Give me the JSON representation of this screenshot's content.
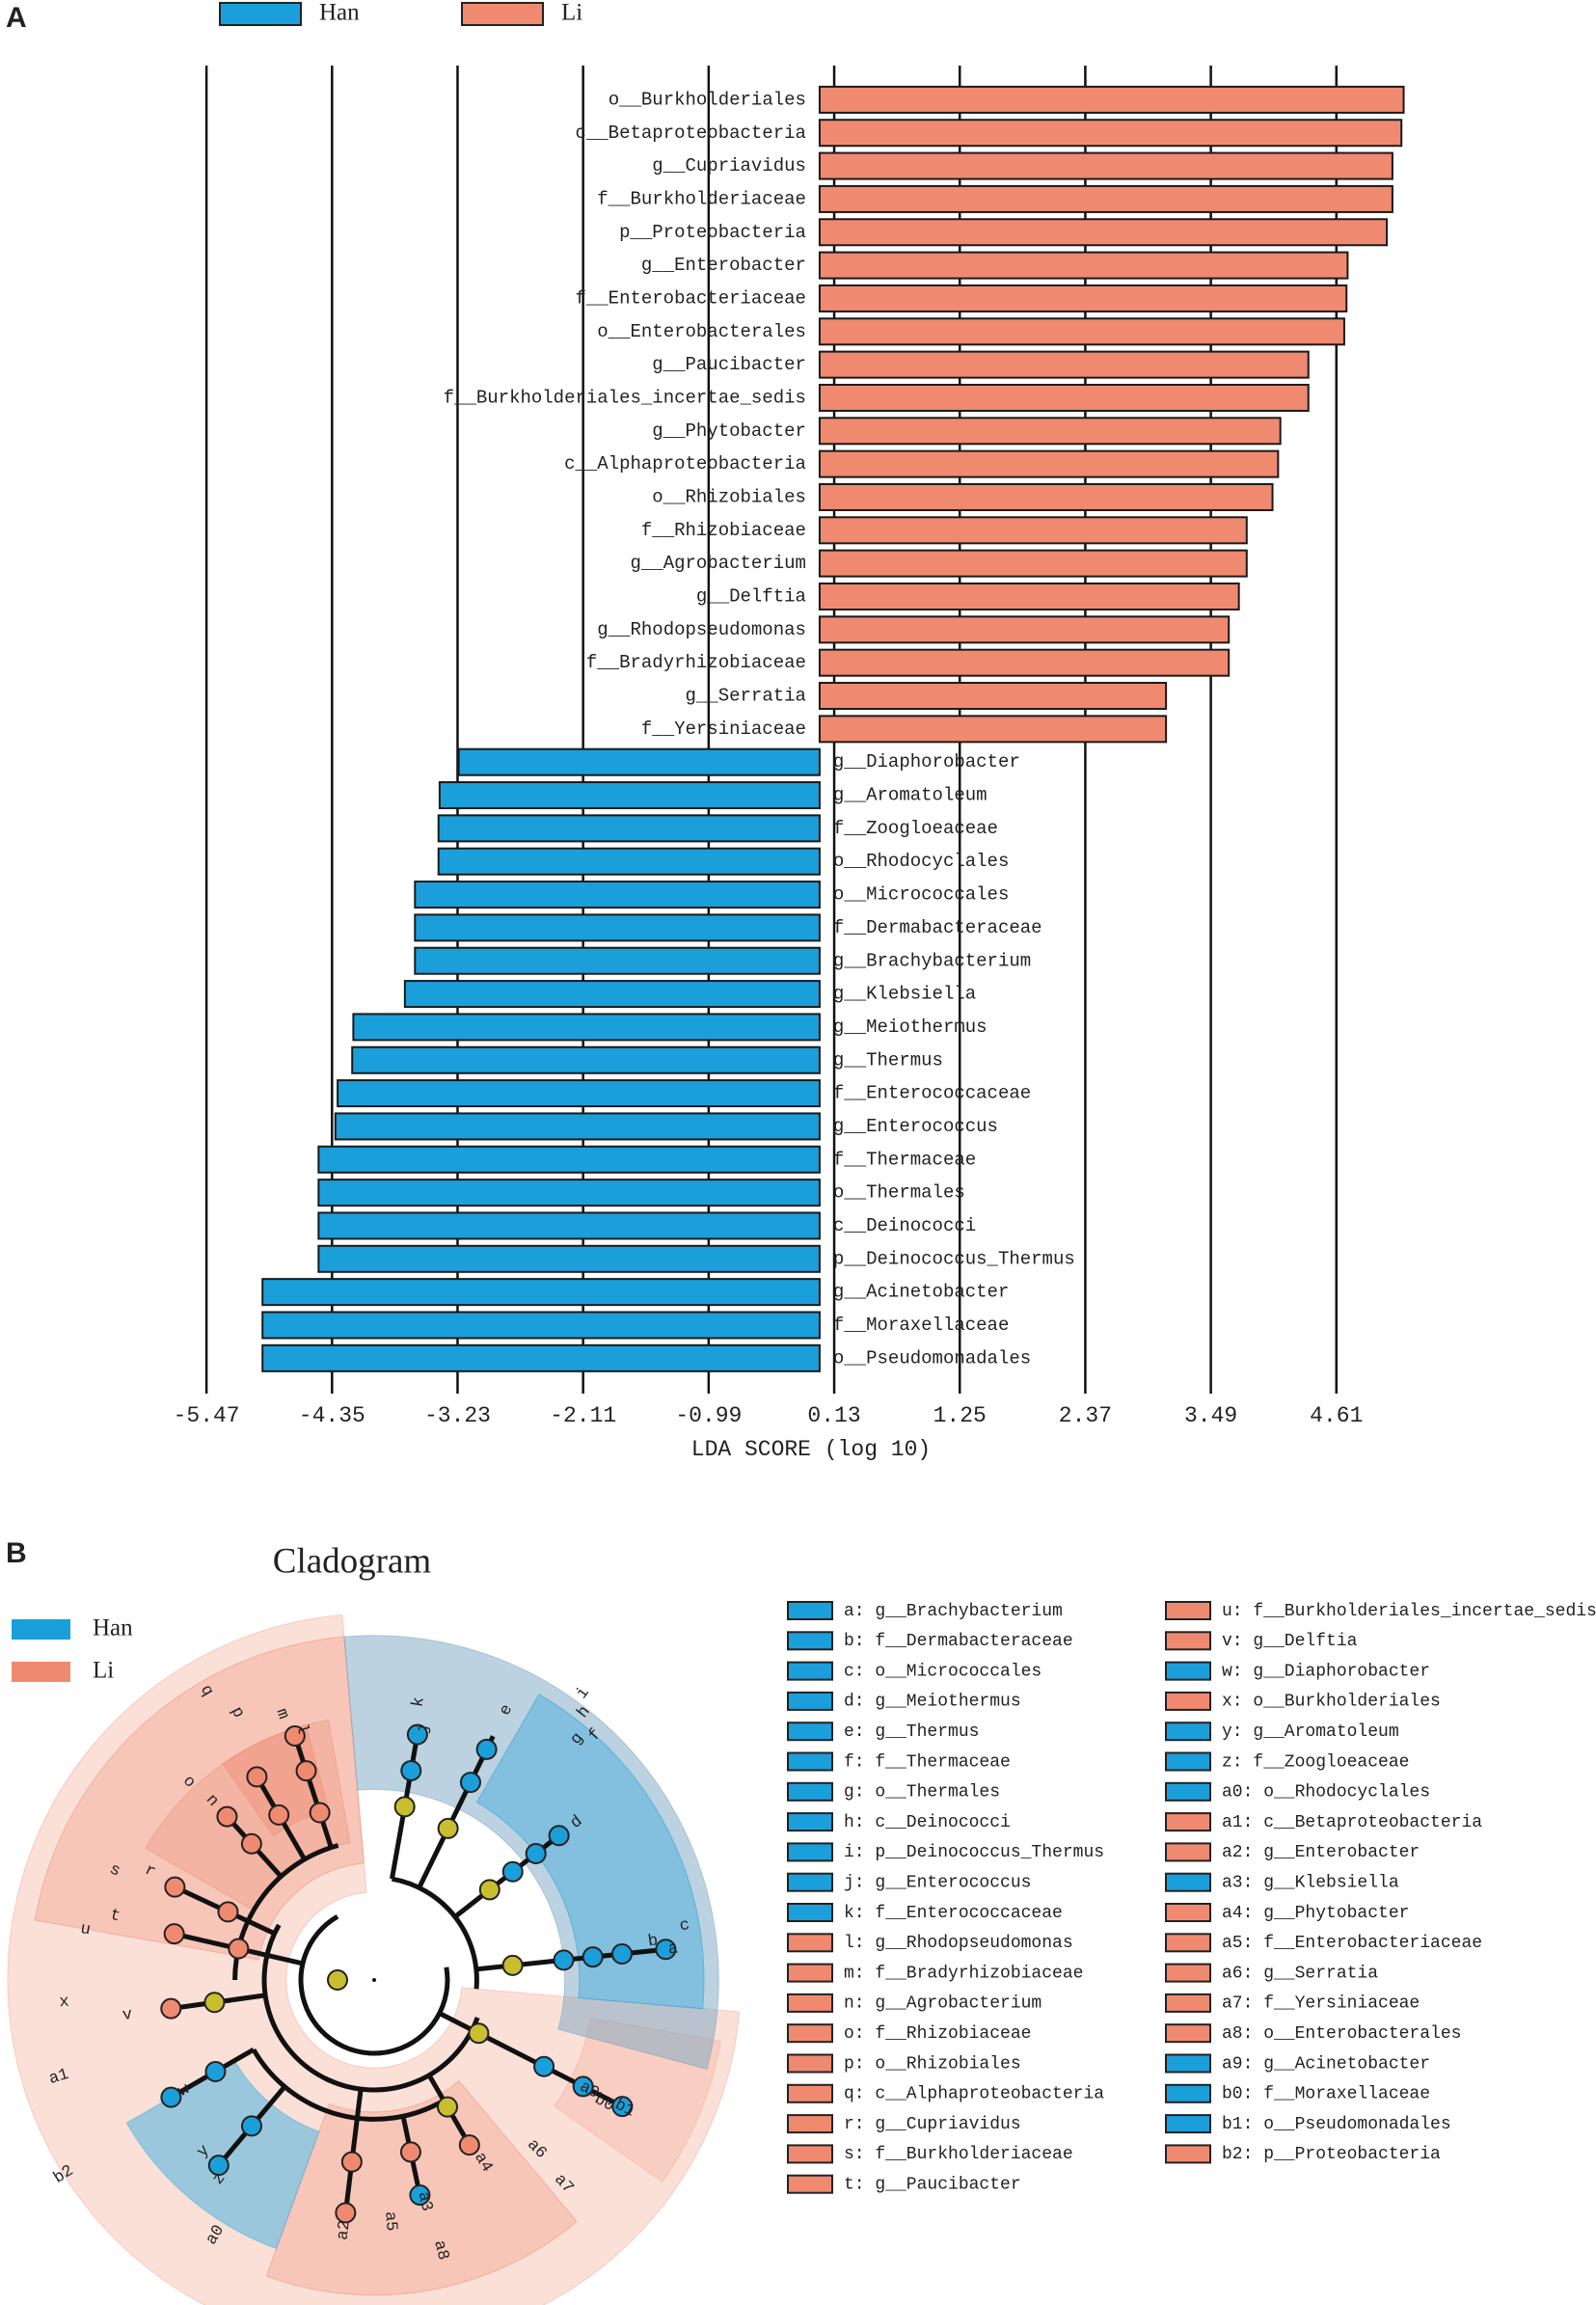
{
  "chart_data": {
    "type": "bar",
    "orientation": "horizontal",
    "panel": "A",
    "x_label": "LDA SCORE (log 10)",
    "categories": [
      "o__Burkholderiales",
      "c__Betaproteobacteria",
      "g__Cupriavidus",
      "f__Burkholderiaceae",
      "p__Proteobacteria",
      "g__Enterobacter",
      "f__Enterobacteriaceae",
      "o__Enterobacterales",
      "g__Paucibacter",
      "f__Burkholderiales_incertae_sedis",
      "g__Phytobacter",
      "c__Alphaproteobacteria",
      "o__Rhizobiales",
      "f__Rhizobiaceae",
      "g__Agrobacterium",
      "g__Delftia",
      "g__Rhodopseudomonas",
      "f__Bradyrhizobiaceae",
      "g__Serratia",
      "f__Yersiniaceae",
      "g__Diaphorobacter",
      "g__Aromatoleum",
      "f__Zoogloeaceae",
      "o__Rhodocyclales",
      "o__Micrococcales",
      "f__Dermabacteraceae",
      "g__Brachybacterium",
      "g__Klebsiella",
      "g__Meiothermus",
      "g__Thermus",
      "f__Enterococcaceae",
      "g__Enterococcus",
      "f__Thermaceae",
      "o__Thermales",
      "c__Deinococci",
      "p__Deinococcus_Thermus",
      "g__Acinetobacter",
      "f__Moraxellaceae",
      "o__Pseudomonadales"
    ],
    "series": [
      {
        "name": "Han",
        "color": "#1b9fdb",
        "values": [
          null,
          null,
          null,
          null,
          null,
          null,
          null,
          null,
          null,
          null,
          null,
          null,
          null,
          null,
          null,
          null,
          null,
          null,
          null,
          null,
          -3.22,
          -3.39,
          -3.4,
          -3.4,
          -3.61,
          -3.61,
          -3.61,
          -3.7,
          -4.16,
          -4.17,
          -4.3,
          -4.32,
          -4.47,
          -4.47,
          -4.47,
          -4.47,
          -4.97,
          -4.97,
          -4.97
        ]
      },
      {
        "name": "Li",
        "color": "#ef8a70",
        "values": [
          5.21,
          5.19,
          5.11,
          5.11,
          5.06,
          4.71,
          4.7,
          4.68,
          4.36,
          4.36,
          4.11,
          4.09,
          4.04,
          3.81,
          3.81,
          3.74,
          3.65,
          3.65,
          3.09,
          3.09,
          null,
          null,
          null,
          null,
          null,
          null,
          null,
          null,
          null,
          null,
          null,
          null,
          null,
          null,
          null,
          null,
          null,
          null,
          null
        ]
      }
    ],
    "xlim": [
      -5.6,
      5.3
    ],
    "xticks": [
      -5.47,
      -4.35,
      -3.23,
      -2.11,
      -0.99,
      0.13,
      1.25,
      2.37,
      3.49,
      4.61
    ],
    "grid": true
  },
  "cladogram": {
    "panel": "B",
    "title": "Cladogram",
    "legend": [
      {
        "name": "Han",
        "color": "#1b9fdb"
      },
      {
        "name": "Li",
        "color": "#ef8a70"
      }
    ],
    "node_labels": [
      "a",
      "b",
      "c",
      "d",
      "e",
      "f",
      "g",
      "h",
      "i",
      "j",
      "k",
      "l",
      "m",
      "n",
      "o",
      "p",
      "q",
      "r",
      "s",
      "t",
      "u",
      "v",
      "w",
      "x",
      "y",
      "z",
      "a0",
      "a1",
      "a2",
      "a3",
      "a4",
      "a5",
      "a6",
      "a7",
      "a8",
      "a9",
      "b0",
      "b1",
      "b2"
    ],
    "entries": [
      {
        "label": "a: g__Brachybacterium",
        "color": "#1b9fdb"
      },
      {
        "label": "b: f__Dermabacteraceae",
        "color": "#1b9fdb"
      },
      {
        "label": "c: o__Micrococcales",
        "color": "#1b9fdb"
      },
      {
        "label": "d: g__Meiothermus",
        "color": "#1b9fdb"
      },
      {
        "label": "e: g__Thermus",
        "color": "#1b9fdb"
      },
      {
        "label": "f: f__Thermaceae",
        "color": "#1b9fdb"
      },
      {
        "label": "g: o__Thermales",
        "color": "#1b9fdb"
      },
      {
        "label": "h: c__Deinococci",
        "color": "#1b9fdb"
      },
      {
        "label": "i: p__Deinococcus_Thermus",
        "color": "#1b9fdb"
      },
      {
        "label": "j: g__Enterococcus",
        "color": "#1b9fdb"
      },
      {
        "label": "k: f__Enterococcaceae",
        "color": "#1b9fdb"
      },
      {
        "label": "l: g__Rhodopseudomonas",
        "color": "#ef8a70"
      },
      {
        "label": "m: f__Bradyrhizobiaceae",
        "color": "#ef8a70"
      },
      {
        "label": "n: g__Agrobacterium",
        "color": "#ef8a70"
      },
      {
        "label": "o: f__Rhizobiaceae",
        "color": "#ef8a70"
      },
      {
        "label": "p: o__Rhizobiales",
        "color": "#ef8a70"
      },
      {
        "label": "q: c__Alphaproteobacteria",
        "color": "#ef8a70"
      },
      {
        "label": "r: g__Cupriavidus",
        "color": "#ef8a70"
      },
      {
        "label": "s: f__Burkholderiaceae",
        "color": "#ef8a70"
      },
      {
        "label": "t: g__Paucibacter",
        "color": "#ef8a70"
      },
      {
        "label": "u: f__Burkholderiales_incertae_sedis",
        "color": "#ef8a70"
      },
      {
        "label": "v: g__Delftia",
        "color": "#ef8a70"
      },
      {
        "label": "w: g__Diaphorobacter",
        "color": "#1b9fdb"
      },
      {
        "label": "x: o__Burkholderiales",
        "color": "#ef8a70"
      },
      {
        "label": "y: g__Aromatoleum",
        "color": "#1b9fdb"
      },
      {
        "label": "z: f__Zoogloeaceae",
        "color": "#1b9fdb"
      },
      {
        "label": "a0: o__Rhodocyclales",
        "color": "#1b9fdb"
      },
      {
        "label": "a1: c__Betaproteobacteria",
        "color": "#ef8a70"
      },
      {
        "label": "a2: g__Enterobacter",
        "color": "#ef8a70"
      },
      {
        "label": "a3: g__Klebsiella",
        "color": "#1b9fdb"
      },
      {
        "label": "a4: g__Phytobacter",
        "color": "#ef8a70"
      },
      {
        "label": "a5: f__Enterobacteriaceae",
        "color": "#ef8a70"
      },
      {
        "label": "a6: g__Serratia",
        "color": "#ef8a70"
      },
      {
        "label": "a7: f__Yersiniaceae",
        "color": "#ef8a70"
      },
      {
        "label": "a8: o__Enterobacterales",
        "color": "#ef8a70"
      },
      {
        "label": "a9: g__Acinetobacter",
        "color": "#1b9fdb"
      },
      {
        "label": "b0: f__Moraxellaceae",
        "color": "#1b9fdb"
      },
      {
        "label": "b1: o__Pseudomonadales",
        "color": "#1b9fdb"
      },
      {
        "label": "b2: p__Proteobacteria",
        "color": "#ef8a70"
      }
    ]
  }
}
